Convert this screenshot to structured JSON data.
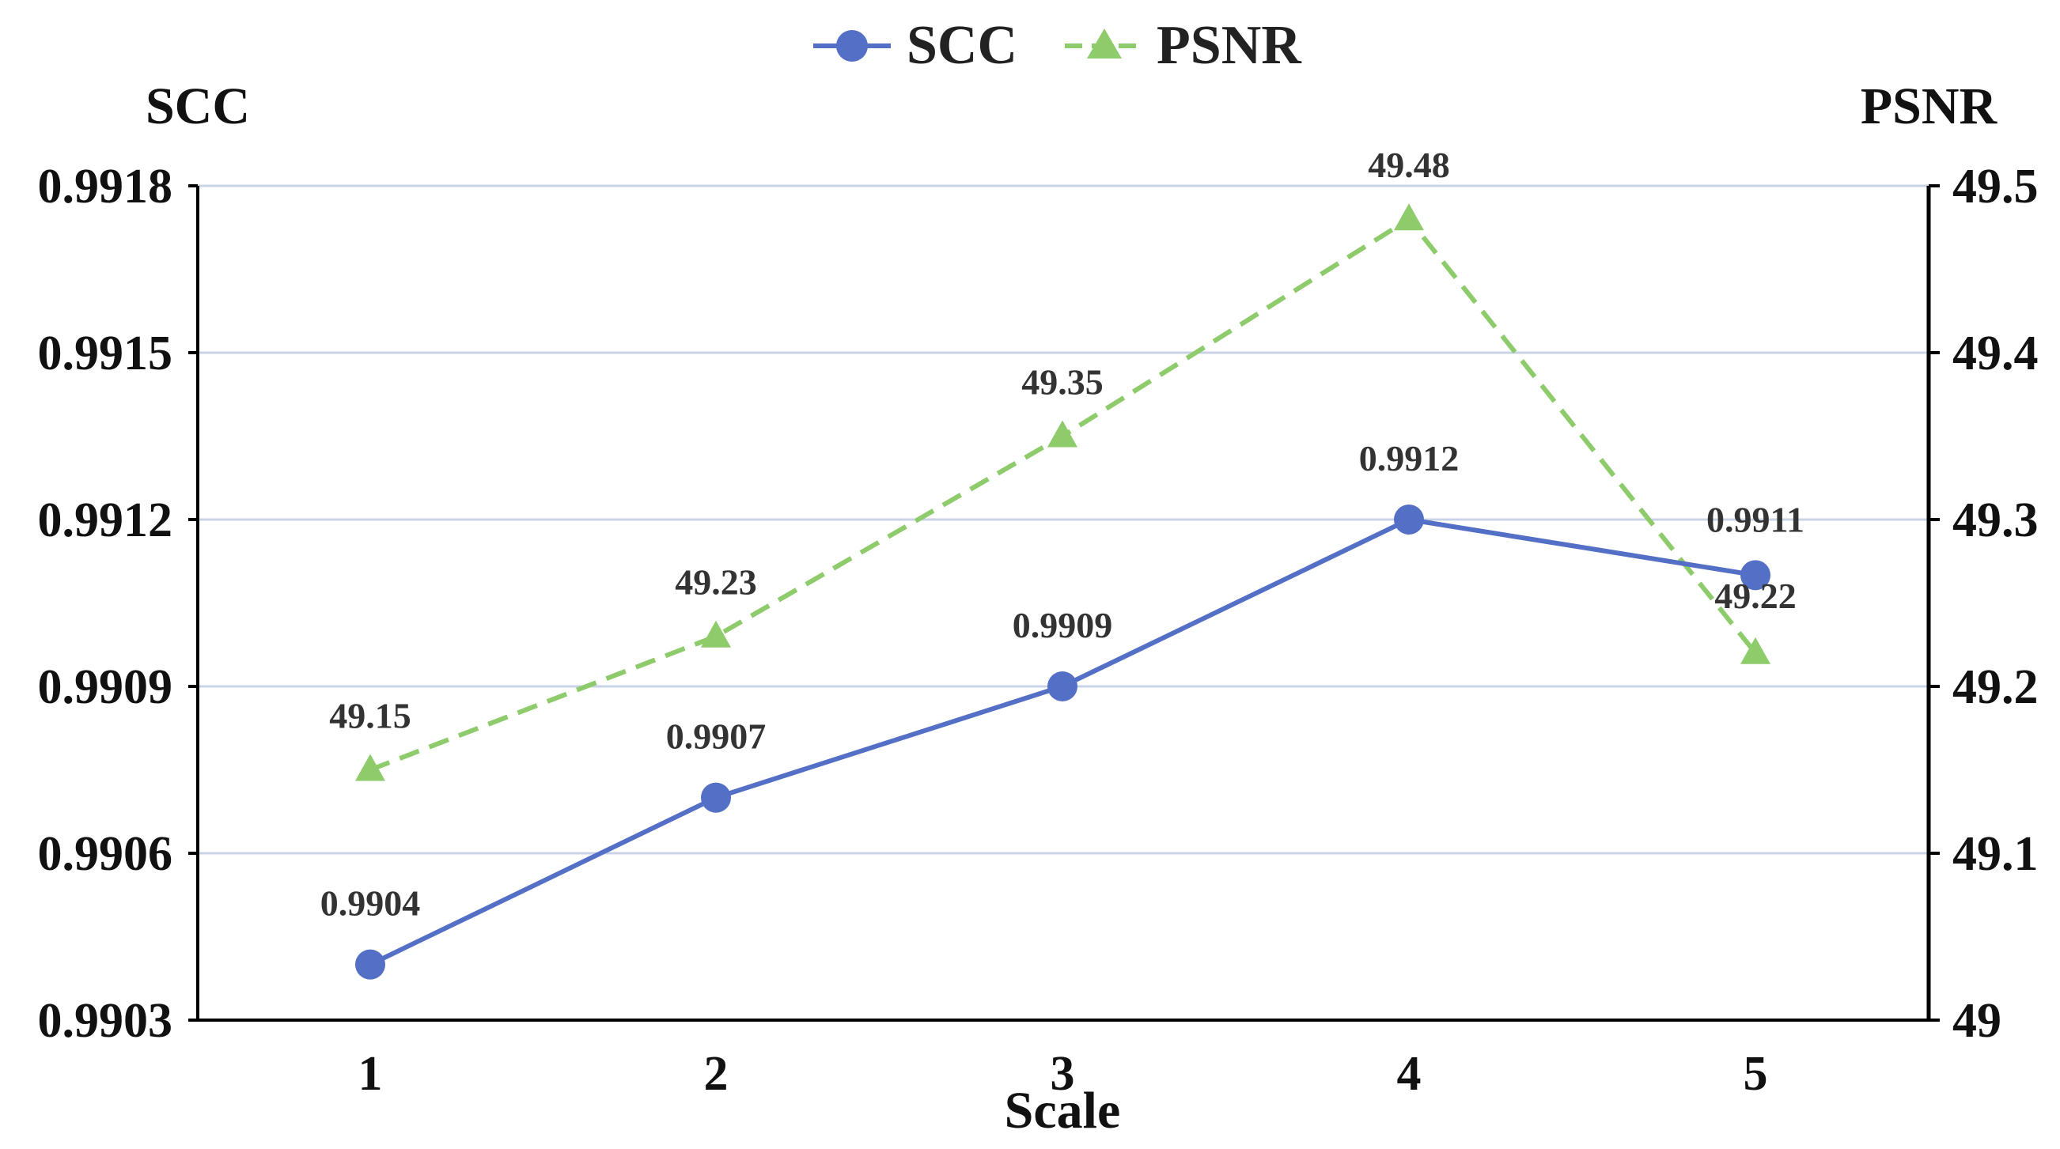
{
  "chart_data": {
    "type": "line",
    "xlabel": "Scale",
    "categories": [
      "1",
      "2",
      "3",
      "4",
      "5"
    ],
    "left_axis": {
      "title": "SCC",
      "ylim": [
        0.9903,
        0.9918
      ],
      "ticks": [
        "0.9903",
        "0.9906",
        "0.9909",
        "0.9912",
        "0.9915",
        "0.9918"
      ],
      "tick_values": [
        0.9903,
        0.9906,
        0.9909,
        0.9912,
        0.9915,
        0.9918
      ]
    },
    "right_axis": {
      "title": "PSNR",
      "ylim": [
        49.0,
        49.5
      ],
      "ticks": [
        "49",
        "49.1",
        "49.2",
        "49.3",
        "49.4",
        "49.5"
      ],
      "tick_values": [
        49.0,
        49.1,
        49.2,
        49.3,
        49.4,
        49.5
      ]
    },
    "grid": true,
    "legend_position": "top-center",
    "series": [
      {
        "name": "SCC",
        "axis": "left",
        "marker": "circle",
        "line_style": "solid",
        "color": "#5470C6",
        "values": [
          0.9904,
          0.9907,
          0.9909,
          0.9912,
          0.9911
        ],
        "labels": [
          "0.9904",
          "0.9907",
          "0.9909",
          "0.9912",
          "0.9911"
        ]
      },
      {
        "name": "PSNR",
        "axis": "right",
        "marker": "triangle",
        "line_style": "dashed",
        "color": "#8DCB6B",
        "values": [
          49.15,
          49.23,
          49.35,
          49.48,
          49.22
        ],
        "labels": [
          "49.15",
          "49.23",
          "49.35",
          "49.48",
          "49.22"
        ]
      }
    ]
  }
}
